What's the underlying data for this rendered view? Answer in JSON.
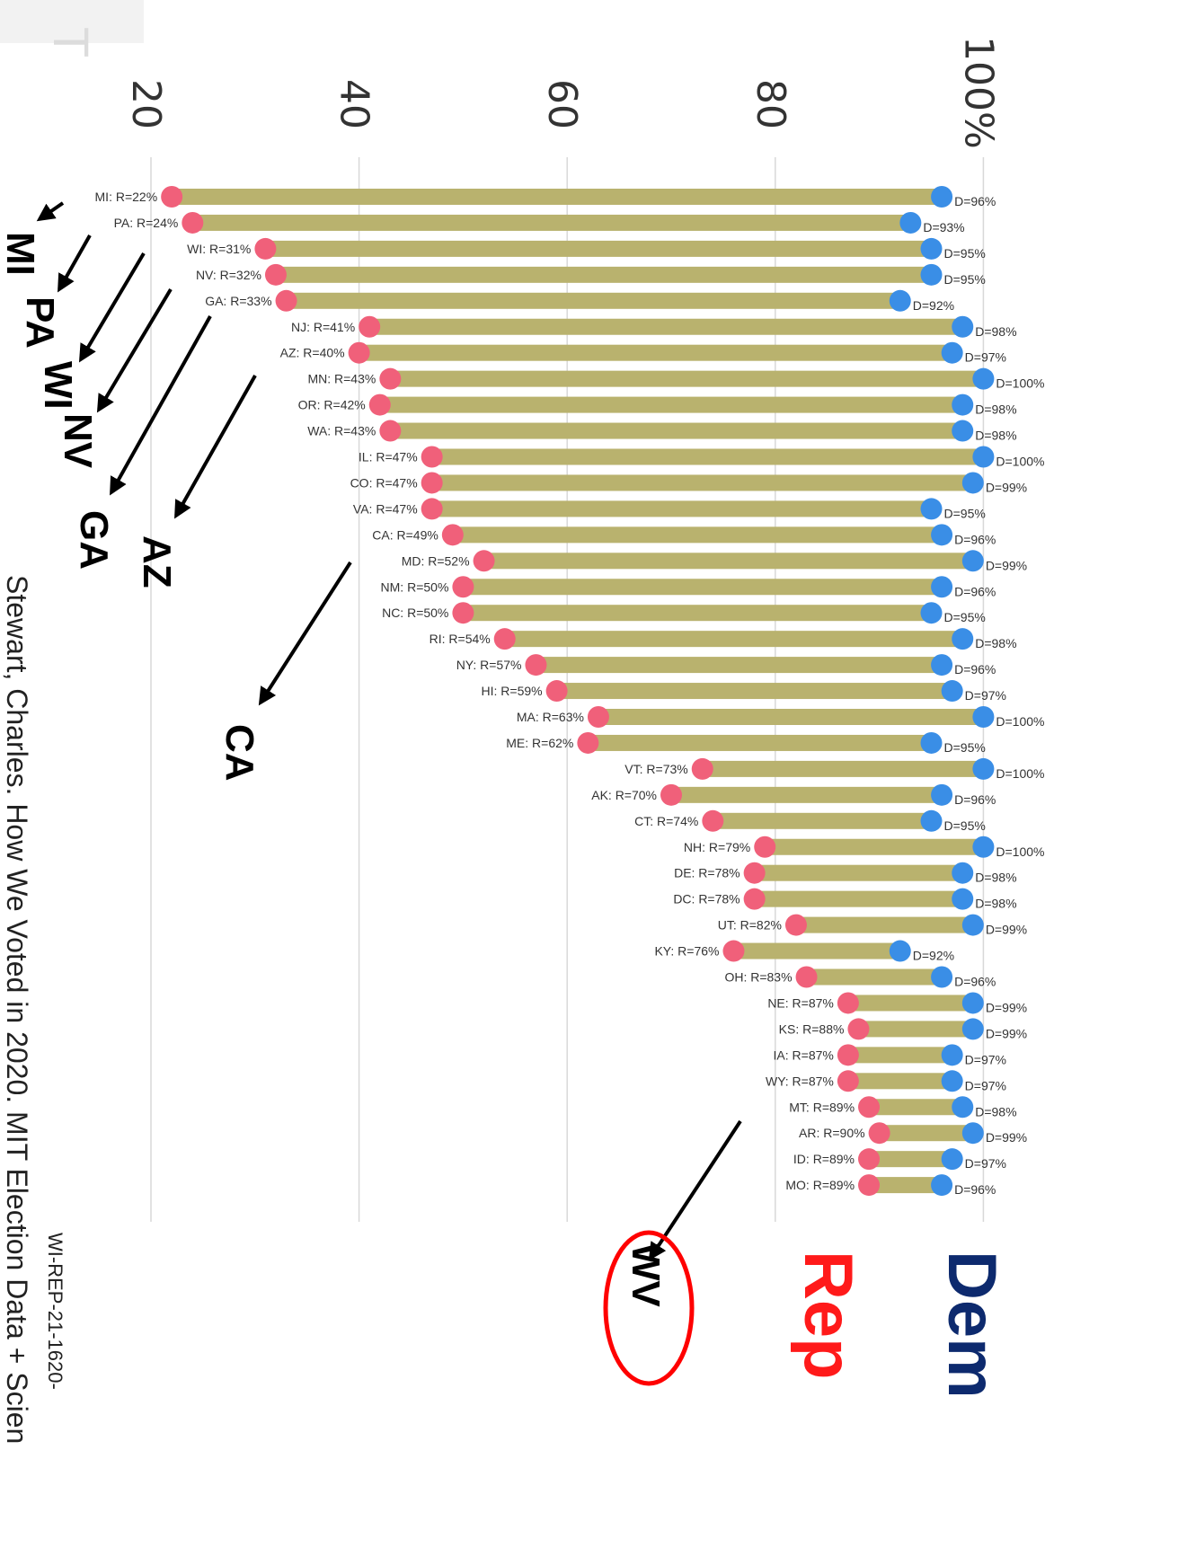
{
  "colors": {
    "bar": "#b9b26e",
    "rep": "#f0607a",
    "dem": "#3a8ee6",
    "grid": "#d8d8d8",
    "dem_legend": "#0d2a6e",
    "rep_legend": "#ff1a1a",
    "arrow": "#000000",
    "highlight_circle": "#ff0000",
    "corner_mark": "#dcdcdc"
  },
  "header_mark": "T",
  "legend": {
    "dem": "Dem",
    "rep": "Rep"
  },
  "annotations": [
    "MI",
    "PA",
    "WI",
    "NV",
    "GA",
    "AZ",
    "CA",
    "WV"
  ],
  "footer": {
    "citation": "Stewart, Charles. How We Voted in 2020. MIT Election Data + Scien",
    "doc_id": "WI-REP-21-1620-"
  },
  "chart_data": {
    "type": "bar",
    "orientation": "rotated 90° clockwise (categories run top to bottom)",
    "axis_tick_labels": [
      "20",
      "40",
      "60",
      "80",
      "100%"
    ],
    "ylim": [
      20,
      100
    ],
    "grid": true,
    "categories": [
      "MI",
      "PA",
      "WI",
      "NV",
      "GA",
      "NJ",
      "AZ",
      "MN",
      "OR",
      "WA",
      "IL",
      "CO",
      "VA",
      "CA",
      "MD",
      "NM",
      "NC",
      "RI",
      "NY",
      "HI",
      "MA",
      "ME",
      "VT",
      "AK",
      "CT",
      "NH",
      "DE",
      "DC",
      "UT",
      "KY",
      "OH",
      "NE",
      "KS",
      "IA",
      "WY",
      "MT",
      "AR",
      "ID",
      "MO"
    ],
    "series": [
      {
        "name": "Rep",
        "values": [
          22,
          24,
          31,
          32,
          33,
          41,
          40,
          43,
          42,
          43,
          47,
          47,
          47,
          49,
          52,
          50,
          50,
          54,
          57,
          59,
          63,
          62,
          73,
          70,
          74,
          79,
          78,
          78,
          82,
          76,
          83,
          87,
          88,
          87,
          87,
          89,
          90,
          89,
          89
        ]
      },
      {
        "name": "Dem",
        "values": [
          96,
          93,
          95,
          95,
          92,
          98,
          97,
          100,
          98,
          98,
          100,
          99,
          95,
          96,
          99,
          96,
          95,
          98,
          96,
          97,
          100,
          95,
          100,
          96,
          95,
          100,
          98,
          98,
          99,
          92,
          96,
          99,
          99,
          97,
          97,
          98,
          99,
          97,
          96
        ]
      }
    ],
    "row_labels": [
      {
        "r": "MI: R=22%",
        "d": "D=96%"
      },
      {
        "r": "PA: R=24%",
        "d": "D=93%"
      },
      {
        "r": "WI: R=31%",
        "d": "D=95%"
      },
      {
        "r": "NV: R=32%",
        "d": "D=95%"
      },
      {
        "r": "GA: R=33%",
        "d": "D=92%"
      },
      {
        "r": "NJ: R=41%",
        "d": "D=98%"
      },
      {
        "r": "AZ: R=40%",
        "d": "D=97%"
      },
      {
        "r": "MN: R=43%",
        "d": "D=100%"
      },
      {
        "r": "OR: R=42%",
        "d": "D=98%"
      },
      {
        "r": "WA: R=43%",
        "d": "D=98%"
      },
      {
        "r": "IL: R=47%",
        "d": "D=100%"
      },
      {
        "r": "CO: R=47%",
        "d": "D=99%"
      },
      {
        "r": "VA: R=47%",
        "d": "D=95%"
      },
      {
        "r": "CA: R=49%",
        "d": "D=96%"
      },
      {
        "r": "MD: R=52%",
        "d": "D=99%"
      },
      {
        "r": "NM: R=50%",
        "d": "D=96%"
      },
      {
        "r": "NC: R=50%",
        "d": "D=95%"
      },
      {
        "r": "RI: R=54%",
        "d": "D=98%"
      },
      {
        "r": "NY: R=57%",
        "d": "D=96%"
      },
      {
        "r": "HI: R=59%",
        "d": "D=97%"
      },
      {
        "r": "MA: R=63%",
        "d": "D=100%"
      },
      {
        "r": "ME: R=62%",
        "d": "D=95%"
      },
      {
        "r": "VT: R=73%",
        "d": "D=100%"
      },
      {
        "r": "AK: R=70%",
        "d": "D=96%"
      },
      {
        "r": "CT: R=74%",
        "d": "D=95%"
      },
      {
        "r": "NH: R=79%",
        "d": "D=100%"
      },
      {
        "r": "DE: R=78%",
        "d": "D=98%"
      },
      {
        "r": "DC: R=78%",
        "d": "D=98%"
      },
      {
        "r": "UT: R=82%",
        "d": "D=99%"
      },
      {
        "r": "KY: R=76%",
        "d": "D=92%"
      },
      {
        "r": "OH: R=83%",
        "d": "D=96%"
      },
      {
        "r": "NE: R=87%",
        "d": "D=99%"
      },
      {
        "r": "KS: R=88%",
        "d": "D=99%"
      },
      {
        "r": "IA: R=87%",
        "d": "D=97%"
      },
      {
        "r": "WY: R=87%",
        "d": "D=97%"
      },
      {
        "r": "MT: R=89%",
        "d": "D=98%"
      },
      {
        "r": "AR: R=90%",
        "d": "D=99%"
      },
      {
        "r": "ID: R=89%",
        "d": "D=97%"
      },
      {
        "r": "MO: R=89%",
        "d": "D=96%"
      }
    ]
  }
}
